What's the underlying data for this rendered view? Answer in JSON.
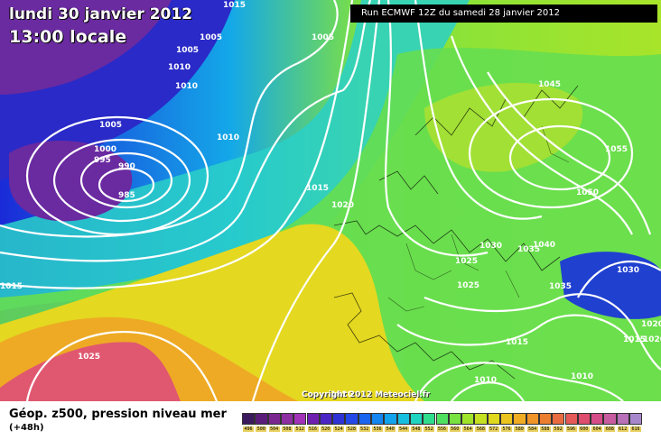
{
  "header": {
    "date": "lundi 30 janvier 2012",
    "time": "13:00 locale",
    "run": "Run ECMWF 12Z du samedi 28 janvier 2012"
  },
  "map": {
    "copyright": "Copyright 2012 Meteociel.fr",
    "isobar_labels": [
      "1015",
      "1005",
      "1005",
      "1005",
      "1010",
      "1010",
      "1005",
      "1010",
      "1000",
      "995",
      "990",
      "985",
      "1015",
      "1020",
      "1045",
      "1055",
      "1050",
      "1030",
      "1035",
      "1040",
      "1025",
      "1025",
      "1035",
      "1030",
      "1020",
      "1015",
      "1015",
      "1010",
      "1010",
      "1020",
      "1015",
      "1025",
      "1020"
    ]
  },
  "footer": {
    "parameter": "Géop. z500, pression niveau mer",
    "lead_time": "(+48h)"
  },
  "legend": {
    "values": [
      "496",
      "500",
      "504",
      "508",
      "512",
      "516",
      "520",
      "524",
      "528",
      "532",
      "536",
      "540",
      "544",
      "548",
      "552",
      "556",
      "560",
      "564",
      "568",
      "572",
      "576",
      "580",
      "584",
      "588",
      "592",
      "596",
      "600",
      "604",
      "608",
      "612",
      "616"
    ],
    "colors": [
      "#3b1a5e",
      "#5a1e7a",
      "#7a2790",
      "#8e2ea3",
      "#a232b8",
      "#6f1fb0",
      "#4a24c4",
      "#2f33d6",
      "#2449e8",
      "#1b66f0",
      "#1486f2",
      "#12a3ec",
      "#16bfe0",
      "#1fd4c0",
      "#2fdc8c",
      "#50e060",
      "#78e240",
      "#a0e42a",
      "#c4e020",
      "#e0d81c",
      "#ecc41e",
      "#f0ac22",
      "#f09428",
      "#ec7e30",
      "#e86c40",
      "#e45a58",
      "#de4c6e",
      "#d44c88",
      "#c85ca0",
      "#b870b8",
      "#a888cc"
    ]
  }
}
